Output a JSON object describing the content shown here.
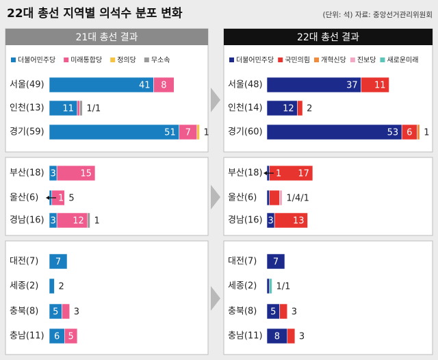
{
  "title": "22대 총선 지역별 의석수 분포 변화",
  "source": "(단위: 석) 자료: 중앙선거관리위원회",
  "chart_data": [
    {
      "type": "bar",
      "title": "21대 총선 결과",
      "stacked": true,
      "categories": [
        "서울(49)",
        "인천(13)",
        "경기(59)",
        "부산(18)",
        "울산(6)",
        "경남(16)",
        "대전(7)",
        "세종(2)",
        "충북(8)",
        "충남(11)"
      ],
      "series": [
        {
          "name": "더불어민주당",
          "color": "#1a7fc1",
          "values": [
            41,
            11,
            51,
            3,
            1,
            3,
            7,
            2,
            5,
            6
          ],
          "value_labels": [
            41,
            11,
            51,
            3,
            null,
            3,
            7,
            null,
            5,
            6
          ]
        },
        {
          "name": "미래통합당",
          "color": "#ee5b8c",
          "values": [
            8,
            1,
            7,
            15,
            5,
            12,
            0,
            0,
            3,
            5
          ],
          "value_labels": [
            8,
            null,
            7,
            15,
            null,
            12,
            null,
            null,
            null,
            5
          ]
        },
        {
          "name": "정의당",
          "color": "#f5c342",
          "values": [
            0,
            0,
            1,
            0,
            0,
            0,
            0,
            0,
            0,
            0
          ],
          "value_labels": [
            null,
            null,
            null,
            null,
            null,
            null,
            null,
            null,
            null,
            null
          ]
        },
        {
          "name": "무소속",
          "color": "#9a9a9a",
          "values": [
            0,
            1,
            0,
            0,
            0,
            1,
            0,
            0,
            0,
            0
          ],
          "value_labels": [
            null,
            null,
            null,
            null,
            null,
            null,
            null,
            null,
            null,
            null
          ]
        }
      ],
      "outside_labels": [
        null,
        "1/1",
        "1",
        null,
        "5",
        "1",
        null,
        "2",
        "3",
        null
      ],
      "arrow_labels": [
        null,
        null,
        null,
        null,
        "1",
        null,
        null,
        null,
        null,
        null
      ]
    },
    {
      "type": "bar",
      "title": "22대 총선 결과",
      "stacked": true,
      "categories": [
        "서울(48)",
        "인천(14)",
        "경기(60)",
        "부산(18)",
        "울산(6)",
        "경남(16)",
        "대전(7)",
        "세종(2)",
        "충북(8)",
        "충남(11)"
      ],
      "series": [
        {
          "name": "더불어민주당",
          "color": "#1c2a8c",
          "values": [
            37,
            12,
            53,
            1,
            1,
            3,
            7,
            1,
            5,
            8
          ],
          "value_labels": [
            37,
            12,
            53,
            null,
            null,
            3,
            7,
            null,
            5,
            8
          ]
        },
        {
          "name": "국민의힘",
          "color": "#e8342f",
          "values": [
            11,
            2,
            6,
            17,
            4,
            13,
            0,
            0,
            3,
            3
          ],
          "value_labels": [
            11,
            null,
            6,
            17,
            null,
            13,
            null,
            null,
            null,
            null
          ]
        },
        {
          "name": "개혁신당",
          "color": "#f08a3c",
          "values": [
            0,
            0,
            1,
            0,
            0,
            0,
            0,
            0,
            0,
            0
          ],
          "value_labels": [
            null,
            null,
            null,
            null,
            null,
            null,
            null,
            null,
            null,
            null
          ]
        },
        {
          "name": "진보당",
          "color": "#f2a7c2",
          "values": [
            0,
            0,
            0,
            0,
            1,
            0,
            0,
            0,
            0,
            0
          ],
          "value_labels": [
            null,
            null,
            null,
            null,
            null,
            null,
            null,
            null,
            null,
            null
          ]
        },
        {
          "name": "새로운미래",
          "color": "#5cc4b8",
          "values": [
            0,
            0,
            0,
            0,
            0,
            0,
            0,
            1,
            0,
            0
          ],
          "value_labels": [
            null,
            null,
            null,
            null,
            null,
            null,
            null,
            null,
            null,
            null
          ]
        }
      ],
      "outside_labels": [
        null,
        "2",
        "1",
        null,
        "1/4/1",
        null,
        null,
        "1/1",
        "3",
        "3"
      ],
      "arrow_labels": [
        null,
        null,
        null,
        "1",
        null,
        null,
        null,
        null,
        null,
        null
      ]
    }
  ]
}
